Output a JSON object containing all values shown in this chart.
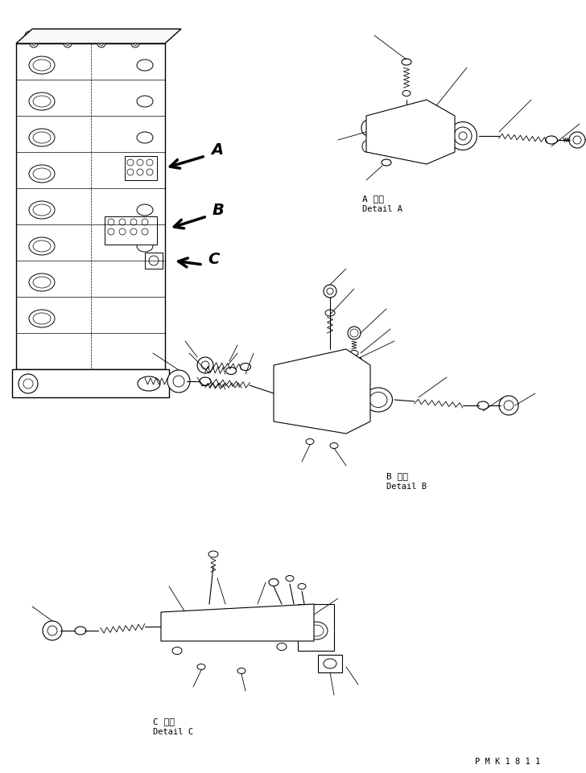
{
  "bg_color": "#ffffff",
  "line_color": "#000000",
  "fig_width": 7.28,
  "fig_height": 9.62,
  "dpi": 100,
  "label_A_jp": "A 詳細",
  "label_A_en": "Detail A",
  "label_B_jp": "B 詳細",
  "label_B_en": "Detail B",
  "label_C_jp": "C 詳細",
  "label_C_en": "Detail C",
  "watermark": "P M K 1 8 1 1"
}
